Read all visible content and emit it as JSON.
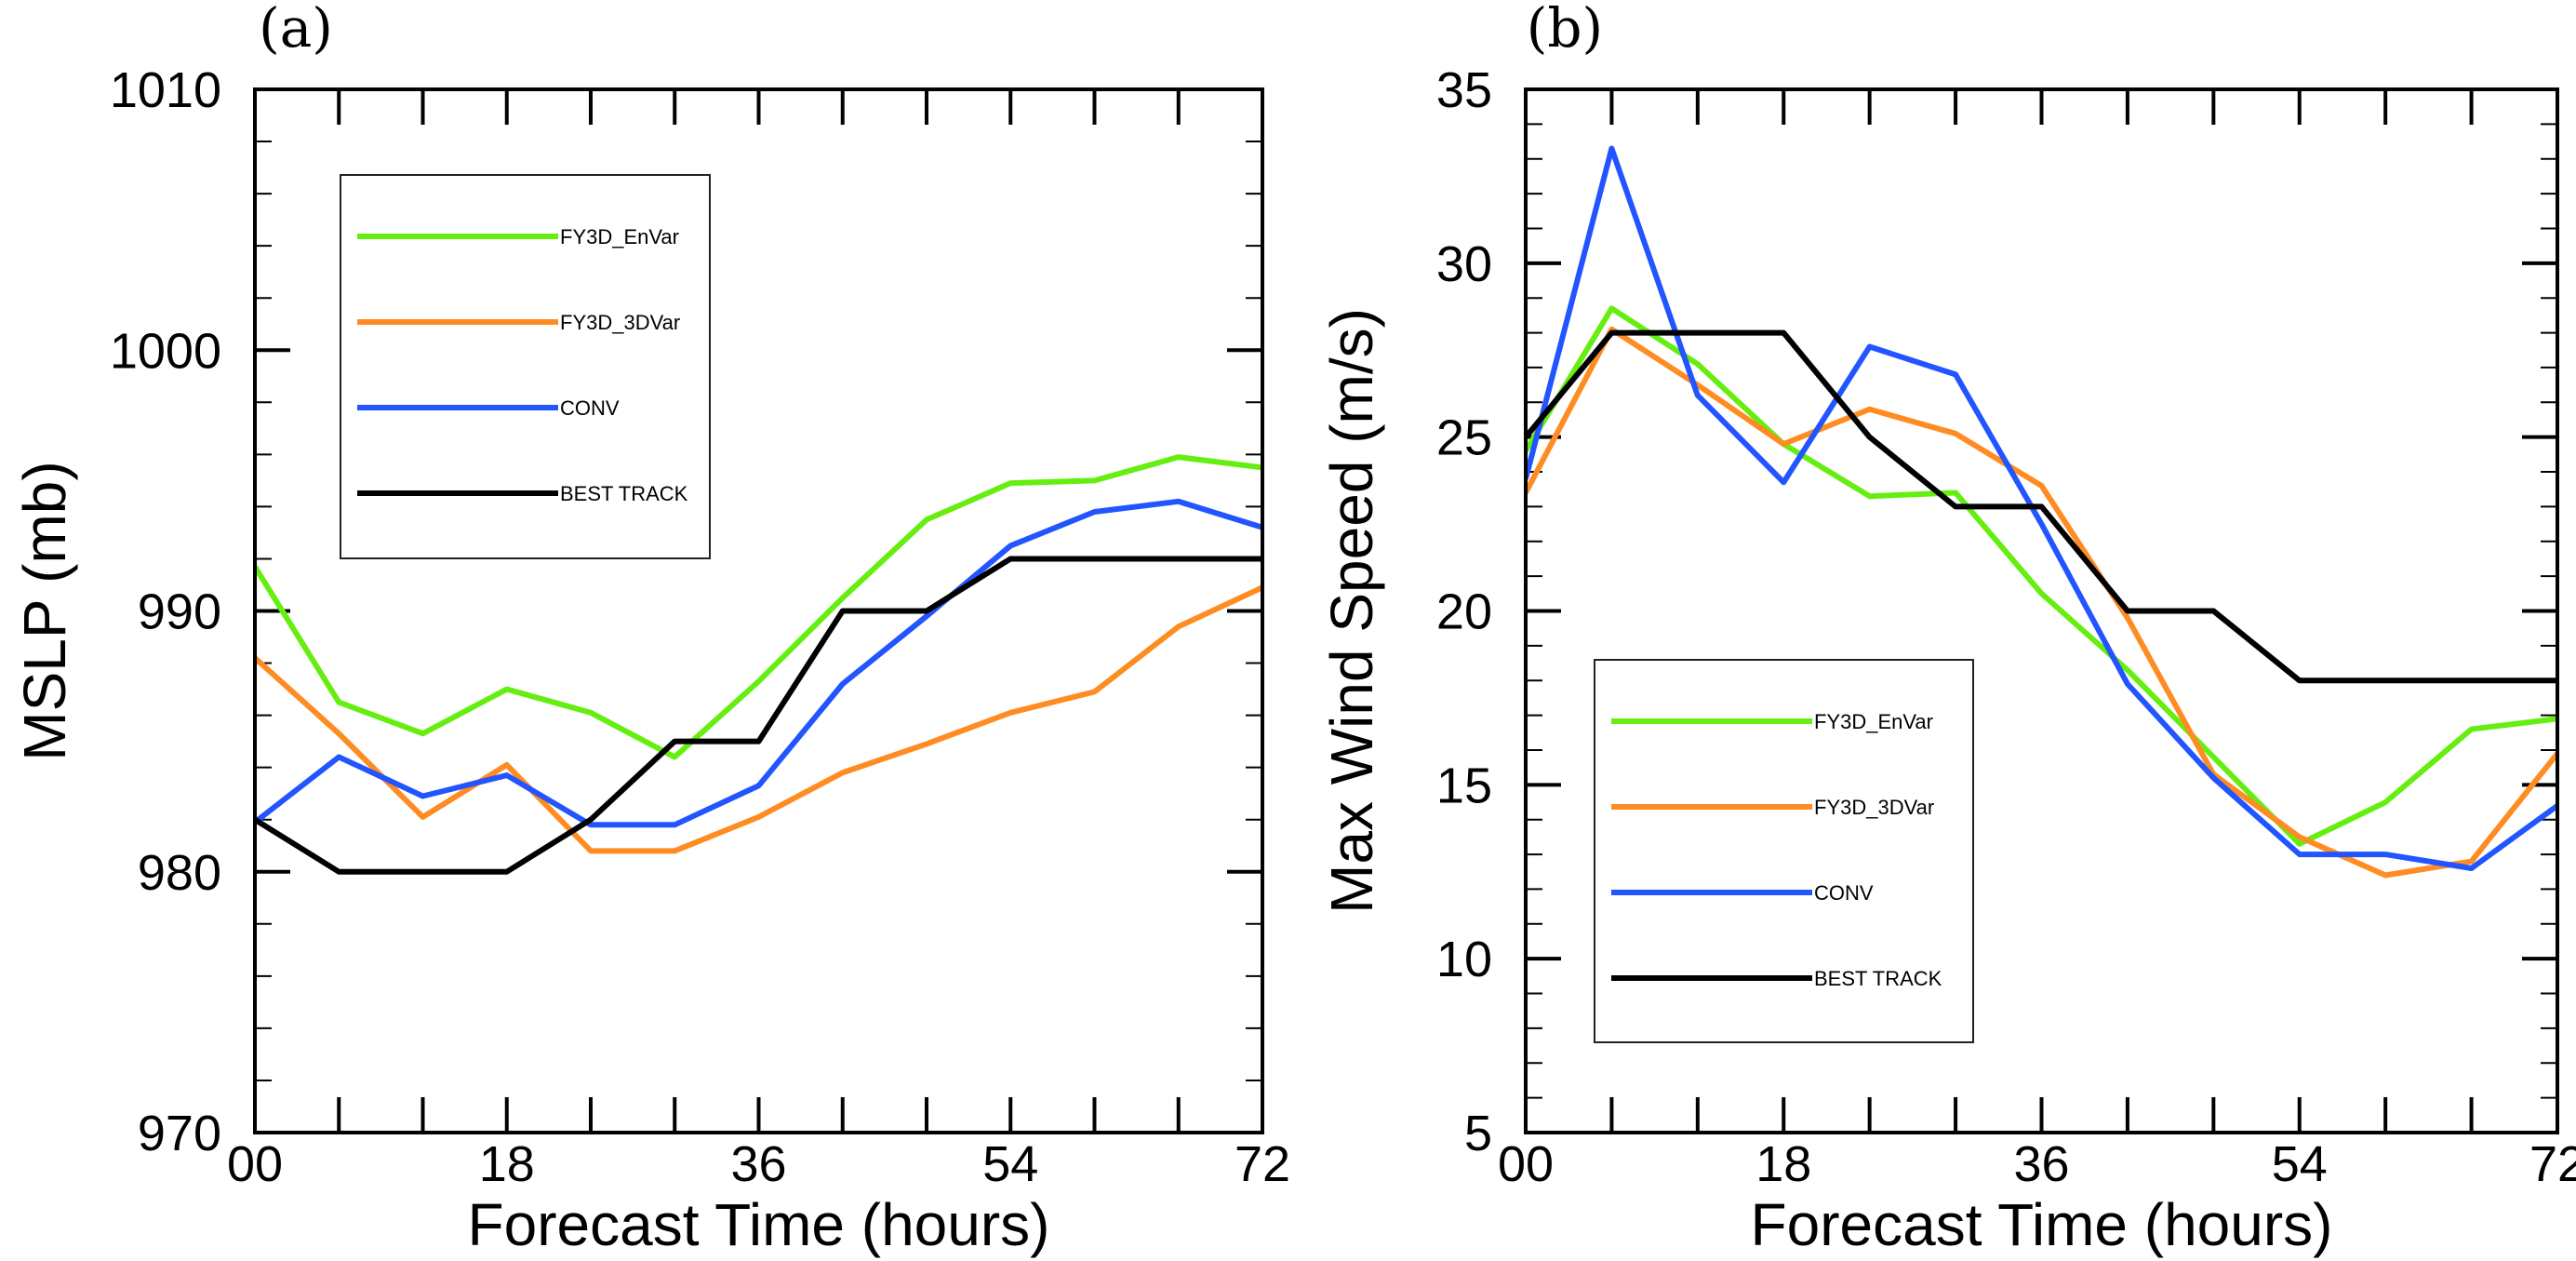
{
  "colors": {
    "FY3D_EnVar": "#66ee11",
    "FY3D_3DVar": "#ff8c22",
    "CONV": "#2255ff",
    "BEST TRACK": "#000000"
  },
  "chart_data": [
    {
      "type": "line",
      "panel_label": "(a)",
      "xlabel": "Forecast Time (hours)",
      "ylabel": "MSLP (mb)",
      "xlim": [
        0,
        72
      ],
      "ylim": [
        970,
        1010
      ],
      "x": [
        0,
        6,
        12,
        18,
        24,
        30,
        36,
        42,
        48,
        54,
        60,
        66,
        72
      ],
      "xticks": [
        "00",
        "18",
        "36",
        "54",
        "72"
      ],
      "yticks": [
        "970",
        "980",
        "990",
        "1000",
        "1010"
      ],
      "legend_position": "upper-left",
      "series": [
        {
          "name": "FY3D_EnVar",
          "values": [
            991.7,
            986.5,
            985.3,
            987.0,
            986.1,
            984.4,
            987.3,
            990.5,
            993.5,
            994.9,
            995.0,
            995.9,
            995.5
          ]
        },
        {
          "name": "FY3D_3DVar",
          "values": [
            988.2,
            985.3,
            982.1,
            984.1,
            980.8,
            980.8,
            982.1,
            983.8,
            984.9,
            986.1,
            986.9,
            989.4,
            990.9
          ]
        },
        {
          "name": "CONV",
          "values": [
            981.9,
            984.4,
            982.9,
            983.7,
            981.8,
            981.8,
            983.3,
            987.2,
            989.8,
            992.5,
            993.8,
            994.2,
            993.2
          ]
        },
        {
          "name": "BEST TRACK",
          "values": [
            982,
            980,
            980,
            980,
            982,
            985,
            985,
            990,
            990,
            992,
            992,
            992,
            992
          ]
        }
      ]
    },
    {
      "type": "line",
      "panel_label": "(b)",
      "xlabel": "Forecast Time (hours)",
      "ylabel": "Max Wind Speed (m/s)",
      "xlim": [
        0,
        72
      ],
      "ylim": [
        5,
        35
      ],
      "x": [
        0,
        6,
        12,
        18,
        24,
        30,
        36,
        42,
        48,
        54,
        60,
        66,
        72
      ],
      "xticks": [
        "00",
        "18",
        "36",
        "54",
        "72"
      ],
      "yticks": [
        "5",
        "10",
        "15",
        "20",
        "25",
        "30",
        "35"
      ],
      "legend_position": "lower-left",
      "series": [
        {
          "name": "FY3D_EnVar",
          "values": [
            24.6,
            28.7,
            27.1,
            24.8,
            23.3,
            23.4,
            20.5,
            18.3,
            15.8,
            13.3,
            14.5,
            16.6,
            16.9
          ]
        },
        {
          "name": "FY3D_3DVar",
          "values": [
            23.4,
            28.1,
            26.5,
            24.8,
            25.8,
            25.1,
            23.6,
            19.8,
            15.3,
            13.5,
            12.4,
            12.8,
            15.9
          ]
        },
        {
          "name": "CONV",
          "values": [
            23.8,
            33.3,
            26.2,
            23.7,
            27.6,
            26.8,
            22.5,
            17.9,
            15.2,
            13.0,
            13.0,
            12.6,
            14.4
          ]
        },
        {
          "name": "BEST TRACK",
          "values": [
            25,
            28,
            28,
            28,
            25,
            23,
            23,
            20,
            20,
            18,
            18,
            18,
            18
          ]
        }
      ]
    }
  ]
}
